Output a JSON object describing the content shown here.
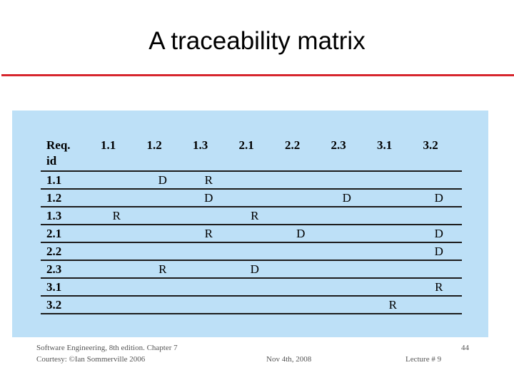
{
  "slide": {
    "title": "A traceability matrix"
  },
  "matrix": {
    "header_label": [
      "Req.",
      "id"
    ],
    "columns": [
      "1.1",
      "1.2",
      "1.3",
      "2.1",
      "2.2",
      "2.3",
      "3.1",
      "3.2"
    ],
    "rows": [
      {
        "id": "1.1",
        "cells": [
          "",
          "D",
          "R",
          "",
          "",
          "",
          "",
          ""
        ]
      },
      {
        "id": "1.2",
        "cells": [
          "",
          "",
          "D",
          "",
          "",
          "D",
          "",
          "D"
        ]
      },
      {
        "id": "1.3",
        "cells": [
          "R",
          "",
          "",
          "R",
          "",
          "",
          "",
          ""
        ]
      },
      {
        "id": "2.1",
        "cells": [
          "",
          "",
          "R",
          "",
          "D",
          "",
          "",
          "D"
        ]
      },
      {
        "id": "2.2",
        "cells": [
          "",
          "",
          "",
          "",
          "",
          "",
          "",
          "D"
        ]
      },
      {
        "id": "2.3",
        "cells": [
          "",
          "R",
          "",
          "D",
          "",
          "",
          "",
          ""
        ]
      },
      {
        "id": "3.1",
        "cells": [
          "",
          "",
          "",
          "",
          "",
          "",
          "",
          "R"
        ]
      },
      {
        "id": "3.2",
        "cells": [
          "",
          "",
          "",
          "",
          "",
          "",
          "R",
          ""
        ]
      }
    ]
  },
  "footer": {
    "book_line1": "Software Engineering, 8th edition. Chapter 7",
    "book_line2": "Courtesy: ©Ian Sommerville 2006",
    "date": "Nov 4th, 2008",
    "page_number": "44",
    "lecture": "Lecture # 9"
  },
  "colors": {
    "rule": "#d7262d",
    "panel": "#bde0f7"
  }
}
